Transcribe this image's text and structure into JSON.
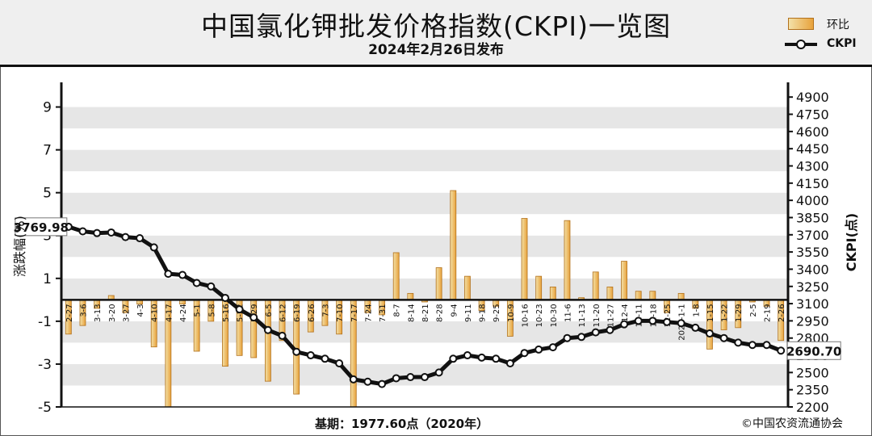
{
  "header": {
    "title": "中国氯化钾批发价格指数(CKPI)一览图",
    "subtitle": "2024年2月26日发布"
  },
  "legend": {
    "bar_label": "环比",
    "line_label": "CKPI"
  },
  "footer": {
    "base": "基期：1977.60点（2020年）",
    "source": "©中国农资流通协会"
  },
  "colors": {
    "bar_fill_light": "#f3e1a8",
    "bar_fill_dark": "#e8a23c",
    "bar_stroke": "#b2711c",
    "line": "#111111",
    "band": "#e6e6e6"
  },
  "chart_data": {
    "type": "bar+line",
    "x_tick_labels": [
      "2-27",
      "3-6",
      "3-13",
      "3-20",
      "3-27",
      "4-3",
      "4-10",
      "4-17",
      "4-24",
      "5-1",
      "5-8",
      "5-16",
      "5-22",
      "5-29",
      "6-5",
      "6-12",
      "6-19",
      "6-26",
      "7-3",
      "7-10",
      "7-17",
      "7-24",
      "7-31",
      "8-7",
      "8-14",
      "8-21",
      "8-28",
      "9-4",
      "9-11",
      "9-18",
      "9-25",
      "10-9",
      "10-16",
      "10-23",
      "10-30",
      "11-6",
      "11-13",
      "11-20",
      "11-27",
      "12-4",
      "12-11",
      "12-18",
      "12-25",
      "2024-1-1",
      "1-8",
      "1-15",
      "1-22",
      "1-29",
      "2-5",
      "2-19",
      "2-26"
    ],
    "left_axis": {
      "label": "涨跌幅(%)",
      "ticks": [
        9,
        7,
        5,
        3,
        1,
        -1,
        -3,
        -5
      ],
      "range": [
        -5,
        10
      ]
    },
    "right_axis": {
      "label": "CKPI(点)",
      "ticks": [
        4900,
        4750,
        4600,
        4450,
        4300,
        4150,
        4000,
        3850,
        3700,
        3550,
        3400,
        3250,
        3100,
        2950,
        2800,
        2650,
        2500,
        2350,
        2200
      ],
      "range": [
        2200,
        5000
      ]
    },
    "series": [
      {
        "name": "环比",
        "type": "bar",
        "axis": "left",
        "values": [
          -1.6,
          -1.2,
          -0.4,
          0.2,
          -0.6,
          -0.2,
          -2.2,
          -5.0,
          -0.2,
          -2.4,
          -1.0,
          -3.1,
          -2.6,
          -2.7,
          -3.8,
          -1.9,
          -4.4,
          -1.5,
          -1.2,
          -1.6,
          -5.0,
          -0.6,
          -0.7,
          2.2,
          0.3,
          -0.1,
          1.5,
          5.1,
          1.1,
          -0.5,
          -0.3,
          -1.7,
          3.8,
          1.1,
          0.6,
          3.7,
          0.1,
          1.3,
          0.6,
          1.8,
          0.4,
          0.4,
          -0.6,
          0.3,
          -0.4,
          -2.3,
          -1.4,
          -1.3,
          -0.1,
          -0.3,
          -1.9
        ]
      },
      {
        "name": "CKPI",
        "type": "line",
        "axis": "right",
        "values": [
          3770,
          3730,
          3715,
          3720,
          3680,
          3670,
          3590,
          3360,
          3350,
          3280,
          3250,
          3150,
          3050,
          2980,
          2870,
          2820,
          2680,
          2650,
          2620,
          2580,
          2440,
          2420,
          2400,
          2450,
          2460,
          2460,
          2500,
          2620,
          2650,
          2630,
          2620,
          2580,
          2670,
          2700,
          2720,
          2800,
          2810,
          2850,
          2870,
          2920,
          2950,
          2950,
          2940,
          2930,
          2890,
          2840,
          2800,
          2760,
          2740,
          2740,
          2690.7
        ]
      }
    ],
    "annotations": [
      "3769.98",
      "2690.70"
    ],
    "grid": "alternating horizontal bands",
    "legend_position": "top-right"
  }
}
